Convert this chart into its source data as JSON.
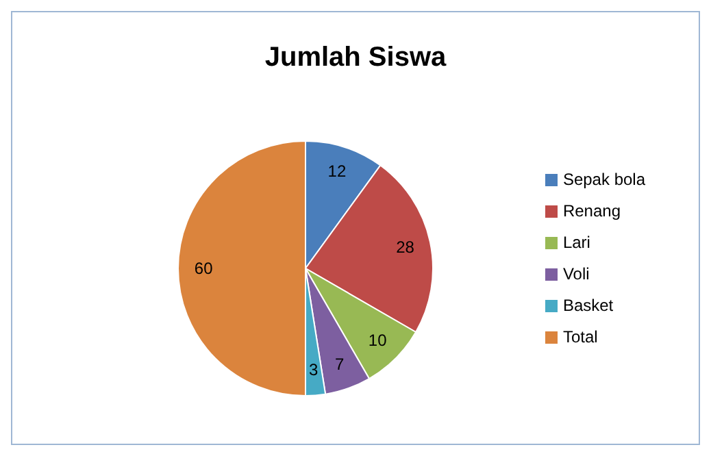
{
  "chart_data": {
    "type": "pie",
    "title": "Jumlah Siswa",
    "categories": [
      "Sepak bola",
      "Renang",
      "Lari",
      "Voli",
      "Basket",
      "Total"
    ],
    "values": [
      12,
      28,
      10,
      7,
      3,
      60
    ],
    "colors": [
      "#4a7ebb",
      "#be4b48",
      "#98b954",
      "#7d5fa0",
      "#46aac5",
      "#db843d"
    ],
    "data_labels": true,
    "legend": "right"
  }
}
